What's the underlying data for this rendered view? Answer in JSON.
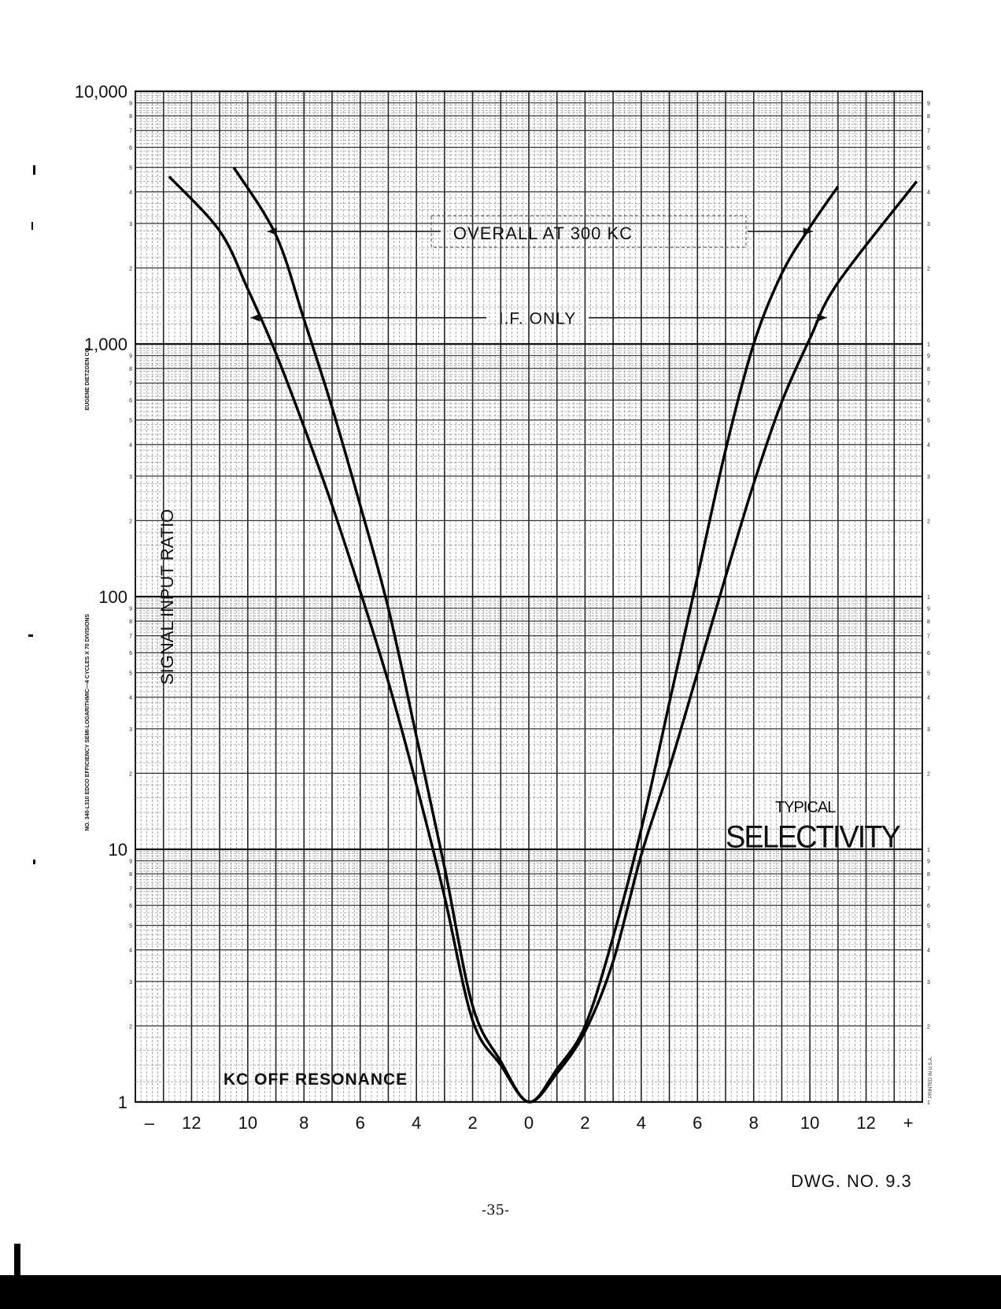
{
  "chart_data": {
    "type": "line",
    "title": "TYPICAL SELECTIVITY",
    "title_parts": [
      "TYPICAL",
      "SELECTIVITY"
    ],
    "xlabel": "KC OFF RESONANCE",
    "ylabel": "SIGNAL INPUT RATIO",
    "y_scale": "log",
    "ylim": [
      1,
      10000
    ],
    "xlim": [
      -14,
      14
    ],
    "y_major_labels": [
      "1",
      "10",
      "100",
      "1,000",
      "10,000"
    ],
    "x_tick_labels": [
      "–",
      "12",
      "10",
      "8",
      "6",
      "4",
      "2",
      "0",
      "2",
      "4",
      "6",
      "8",
      "10",
      "12",
      "+"
    ],
    "x_tick_values": [
      -13.5,
      -12,
      -10,
      -8,
      -6,
      -4,
      -2,
      0,
      2,
      4,
      6,
      8,
      10,
      12,
      13.5
    ],
    "grid": true,
    "series": [
      {
        "name": "OVERALL AT 300 KC",
        "x": [
          -10.5,
          -9,
          -8,
          -7,
          -6,
          -5,
          -4,
          -3,
          -2,
          -1,
          0,
          1,
          2,
          3,
          4,
          5,
          6,
          7,
          8,
          9,
          10,
          11
        ],
        "values": [
          5000,
          2700,
          1250,
          560,
          230,
          90,
          28,
          8.5,
          2.4,
          1.45,
          1,
          1.35,
          2.0,
          4.5,
          12,
          38,
          120,
          380,
          1000,
          1900,
          2900,
          4200
        ]
      },
      {
        "name": "I.F. ONLY",
        "x": [
          -12.8,
          -11,
          -10,
          -9,
          -8,
          -7,
          -6,
          -5,
          -4,
          -3,
          -2,
          -1,
          0,
          1,
          2,
          3,
          4,
          5,
          6,
          7,
          8,
          9,
          10,
          11,
          13.8
        ],
        "values": [
          4600,
          2800,
          1650,
          920,
          470,
          230,
          105,
          46,
          18,
          6.5,
          2.1,
          1.4,
          1,
          1.3,
          1.9,
          3.6,
          9.5,
          21,
          50,
          120,
          280,
          590,
          1050,
          1750,
          4400
        ]
      }
    ],
    "annotations": [
      "OVERALL AT 300 KC",
      "I.F. ONLY"
    ]
  },
  "sheet": {
    "right_scale_labels": [
      "1",
      "2",
      "3",
      "4",
      "5",
      "6",
      "7",
      "8",
      "9"
    ],
    "left_minor_labels": [
      "2",
      "3",
      "4",
      "5",
      "6",
      "7",
      "8",
      "9"
    ],
    "side_text_a": "EUGENE DIETZGEN CO.",
    "side_text_b": "NO. 340-L310 EDCO EFFICIENCY SEMI-LOGARITHMIC—4 CYCLES X 70 DIVISIONS",
    "printed_in": "PRINTED IN U.S.A."
  },
  "footer": {
    "drawing_number": "DWG. NO. 9.3",
    "page_number": "-35-"
  }
}
